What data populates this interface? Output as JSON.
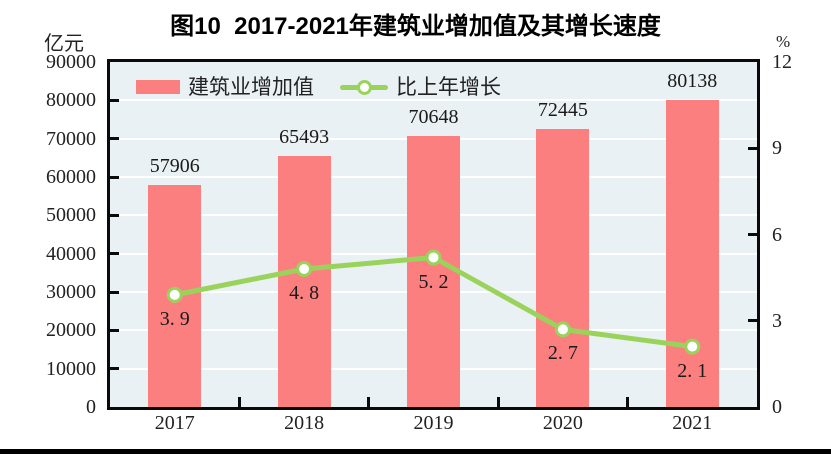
{
  "title": "图10  2017-2021年建筑业增加值及其增长速度",
  "left_axis": {
    "unit": "亿元",
    "ticks": [
      "0",
      "10000",
      "20000",
      "30000",
      "40000",
      "50000",
      "60000",
      "70000",
      "80000",
      "90000"
    ],
    "min": 0,
    "max": 90000,
    "step": 10000
  },
  "right_axis": {
    "unit": "%",
    "ticks": [
      "0",
      "3",
      "6",
      "9",
      "12"
    ],
    "min": 0,
    "max": 12,
    "step": 3
  },
  "legend": {
    "items": [
      {
        "label": "建筑业增加值",
        "type": "bar"
      },
      {
        "label": "比上年增长",
        "type": "line"
      }
    ]
  },
  "colors": {
    "bar": "#fc7f7f",
    "line": "#9ad35b",
    "plot_background": "#e9f1f4",
    "gridline": "#ffffff",
    "axis": "#0a0a0a"
  },
  "chart_data": {
    "type": "bar+line",
    "title": "图10  2017-2021年建筑业增加值及其增长速度",
    "categories": [
      "2017",
      "2018",
      "2019",
      "2020",
      "2021"
    ],
    "series": [
      {
        "name": "建筑业增加值",
        "type": "bar",
        "axis": "left",
        "unit": "亿元",
        "values": [
          57906,
          65493,
          70648,
          72445,
          80138
        ],
        "labels": [
          "57906",
          "65493",
          "70648",
          "72445",
          "80138"
        ],
        "color": "#fc7f7f"
      },
      {
        "name": "比上年增长",
        "type": "line",
        "axis": "right",
        "unit": "%",
        "values": [
          3.9,
          4.8,
          5.2,
          2.7,
          2.1
        ],
        "labels": [
          "3. 9",
          "4. 8",
          "5. 2",
          "2. 7",
          "2. 1"
        ],
        "color": "#9ad35b"
      }
    ],
    "ylim_left": [
      0,
      90000
    ],
    "ylim_right": [
      0,
      12
    ],
    "grid": true,
    "legend_position": "top-left"
  }
}
